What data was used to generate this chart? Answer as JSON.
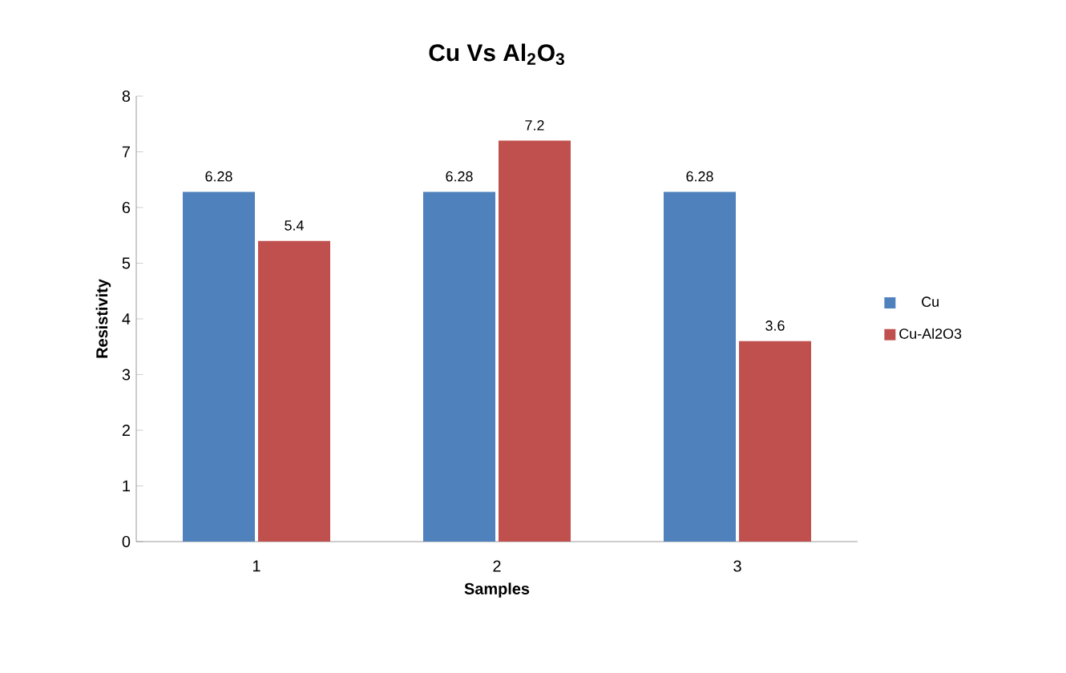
{
  "chart_data": {
    "type": "bar",
    "title": "Cu Vs Al$_{2}$O$_{3}$",
    "xlabel": "Samples",
    "ylabel": "Resistivity",
    "categories": [
      "1",
      "2",
      "3"
    ],
    "series": [
      {
        "name": "Cu",
        "color": "#4f81bd",
        "values": [
          6.28,
          6.28,
          6.28
        ]
      },
      {
        "name": "Cu-Al2O3",
        "color": "#c0504d",
        "values": [
          5.4,
          7.2,
          3.6
        ]
      }
    ],
    "ylim": [
      0,
      8
    ],
    "yticks": [
      0,
      1,
      2,
      3,
      4,
      5,
      6,
      7,
      8
    ],
    "data_labels": true,
    "legend": "right"
  }
}
